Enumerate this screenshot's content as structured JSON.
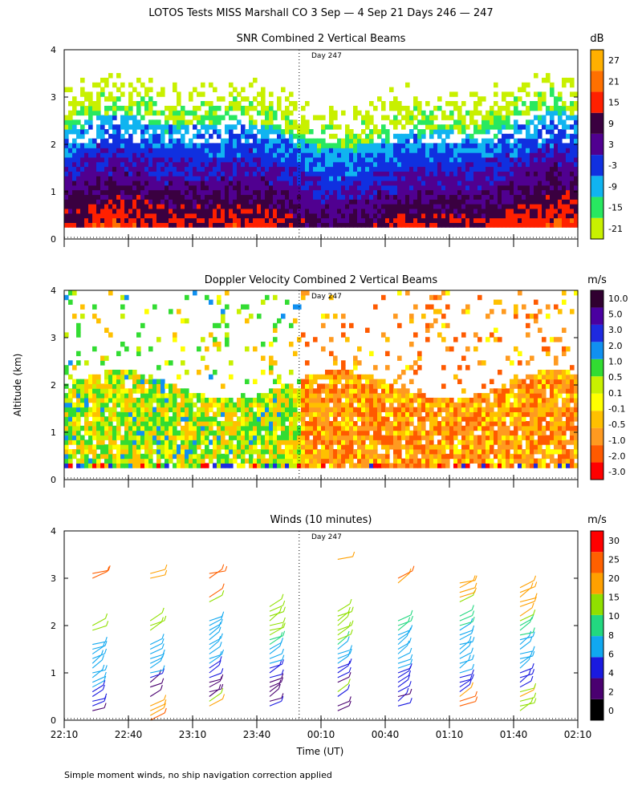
{
  "figure": {
    "title": "LOTOS Tests MISS Marshall CO   3 Sep —  4 Sep 21 Days 246 — 247",
    "footnote": "Simple moment winds, no ship navigation correction applied",
    "shared_ylabel": "Altitude (km)",
    "shared_xlabel": "Time (UT)",
    "x_ticks": [
      "22:10",
      "22:40",
      "23:10",
      "23:40",
      "00:10",
      "00:40",
      "01:10",
      "01:40",
      "02:10"
    ],
    "y_ticks": [
      "0",
      "1",
      "2",
      "3",
      "4"
    ],
    "day_marker": "Day 247"
  },
  "colors": {
    "snr": [
      "#c8f000",
      "#28e860",
      "#10b4f0",
      "#1030e0",
      "#500090",
      "#3a0040",
      "#ff2000",
      "#ff7000",
      "#ffb000"
    ],
    "vel": [
      "#ff0000",
      "#ff5a00",
      "#ff9a20",
      "#ffc000",
      "#ffff00",
      "#c8f000",
      "#32dc32",
      "#1090f0",
      "#1e2ae0",
      "#4a00a0",
      "#300030"
    ],
    "wind": [
      "#000000",
      "#4a0070",
      "#1a1ae0",
      "#10a8f0",
      "#22d880",
      "#90e000",
      "#ffa000",
      "#ff6000",
      "#ff0000"
    ]
  },
  "chart_data": [
    {
      "type": "heatmap",
      "title": "SNR Combined 2 Vertical Beams",
      "unit": "dB",
      "xlabel": "",
      "ylabel": "",
      "xlim_hours_since_2210": [
        0,
        4
      ],
      "ylim_km": [
        0,
        4
      ],
      "data_alt_range_km": [
        0.25,
        4.0
      ],
      "legend_levels": [
        "27",
        "21",
        "15",
        "9",
        "3",
        "-3",
        "-9",
        "-15",
        "-21"
      ],
      "alt_profile_km": [
        0.3,
        0.8,
        1.2,
        1.6,
        2.0,
        2.4,
        2.8,
        3.2,
        3.6
      ],
      "typical_snr_db": [
        10,
        4,
        -2,
        -8,
        -12,
        -17,
        -19,
        -20,
        -21
      ]
    },
    {
      "type": "heatmap",
      "title": "Doppler Velocity Combined 2 Vertical Beams",
      "unit": "m/s",
      "xlabel": "",
      "ylabel": "Altitude (km)",
      "xlim_hours_since_2210": [
        0,
        4
      ],
      "ylim_km": [
        0,
        4
      ],
      "data_alt_range_km": [
        0.25,
        4.0
      ],
      "legend_levels": [
        "10.0",
        "5.0",
        "3.0",
        "2.0",
        "1.0",
        "0.5",
        "0.1",
        "-0.1",
        "-0.5",
        "-1.0",
        "-2.0",
        "-3.0"
      ],
      "first_half_typical_ms": 0.3,
      "second_half_typical_ms": -0.7
    },
    {
      "type": "scatter",
      "title": "Winds (10 minutes)",
      "unit": "m/s",
      "xlabel": "Time (UT)",
      "ylabel": "",
      "xlim_hours_since_2210": [
        0,
        4
      ],
      "ylim_km": [
        0,
        4
      ],
      "legend_levels": [
        "30",
        "25",
        "20",
        "15",
        "10",
        "8",
        "6",
        "4",
        "2",
        "0"
      ],
      "profile_times_hours_since_2210": [
        0.22,
        0.67,
        1.13,
        1.6,
        2.13,
        2.6,
        3.08,
        3.55
      ],
      "profiles": [
        {
          "alts_km": [
            0.2,
            0.3,
            0.4,
            0.5,
            0.6,
            0.7,
            0.8,
            0.9,
            1.0,
            1.1,
            1.2,
            1.3,
            1.4,
            1.5,
            1.6,
            1.9,
            2.0,
            3.0,
            3.1
          ],
          "speeds_ms": [
            3,
            4,
            5,
            4,
            5,
            6,
            6,
            7,
            7,
            7,
            6,
            6,
            6,
            6,
            7,
            12,
            14,
            22,
            24
          ]
        },
        {
          "alts_km": [
            0.0,
            0.1,
            0.2,
            0.3,
            0.5,
            0.7,
            0.8,
            0.9,
            1.0,
            1.1,
            1.2,
            1.3,
            1.4,
            1.5,
            1.6,
            1.9,
            2.0,
            2.1,
            3.0,
            3.1
          ],
          "speeds_ms": [
            20,
            18,
            16,
            15,
            3,
            2,
            3,
            5,
            6,
            6,
            7,
            7,
            6,
            6,
            6,
            12,
            13,
            14,
            15,
            16
          ]
        },
        {
          "alts_km": [
            0.3,
            0.4,
            0.5,
            0.6,
            0.7,
            0.8,
            0.9,
            1.0,
            1.1,
            1.2,
            1.3,
            1.4,
            1.5,
            1.6,
            1.7,
            1.8,
            1.9,
            2.0,
            2.1,
            2.5,
            2.6,
            3.0,
            3.1
          ],
          "speeds_ms": [
            15,
            14,
            3,
            3,
            2,
            3,
            4,
            5,
            5,
            6,
            6,
            6,
            6,
            6,
            6,
            6,
            6,
            7,
            7,
            12,
            20,
            22,
            20
          ]
        },
        {
          "alts_km": [
            0.3,
            0.4,
            0.5,
            0.6,
            0.7,
            0.8,
            0.9,
            1.0,
            1.1,
            1.2,
            1.3,
            1.4,
            1.5,
            1.6,
            1.7,
            1.8,
            1.9,
            2.0,
            2.1,
            2.2,
            2.3,
            2.4
          ],
          "speeds_ms": [
            4,
            3,
            2,
            2,
            3,
            3,
            4,
            5,
            5,
            6,
            6,
            7,
            7,
            8,
            9,
            10,
            11,
            11,
            12,
            12,
            12,
            12
          ]
        },
        {
          "alts_km": [
            0.2,
            0.3,
            0.5,
            0.6,
            0.8,
            0.9,
            1.0,
            1.1,
            1.2,
            1.3,
            1.4,
            1.5,
            1.6,
            1.7,
            1.8,
            1.9,
            2.0,
            2.1,
            2.2,
            2.3,
            3.4
          ],
          "speeds_ms": [
            3,
            3,
            4,
            10,
            3,
            4,
            5,
            5,
            6,
            6,
            6,
            7,
            8,
            10,
            11,
            12,
            12,
            13,
            12,
            12,
            16
          ]
        },
        {
          "alts_km": [
            0.3,
            0.4,
            0.5,
            0.6,
            0.7,
            0.8,
            0.9,
            1.0,
            1.1,
            1.2,
            1.3,
            1.4,
            1.5,
            1.6,
            1.7,
            1.8,
            1.9,
            2.0,
            2.1,
            2.9,
            3.0
          ],
          "speeds_ms": [
            4,
            4,
            3,
            4,
            4,
            5,
            5,
            5,
            6,
            6,
            6,
            6,
            6,
            6,
            7,
            7,
            8,
            9,
            9,
            18,
            20
          ]
        },
        {
          "alts_km": [
            0.3,
            0.4,
            0.5,
            0.6,
            0.7,
            0.8,
            0.9,
            1.0,
            1.1,
            1.2,
            1.3,
            1.4,
            1.5,
            1.6,
            1.7,
            1.8,
            1.9,
            2.0,
            2.1,
            2.2,
            2.5,
            2.6,
            2.7,
            2.8,
            2.9
          ],
          "speeds_ms": [
            22,
            20,
            18,
            4,
            4,
            5,
            5,
            6,
            6,
            6,
            6,
            7,
            7,
            7,
            7,
            7,
            7,
            8,
            8,
            9,
            14,
            16,
            18,
            18,
            18
          ]
        },
        {
          "alts_km": [
            0.2,
            0.3,
            0.4,
            0.5,
            0.6,
            0.7,
            0.8,
            0.9,
            1.0,
            1.1,
            1.2,
            1.3,
            1.4,
            1.5,
            1.6,
            1.7,
            1.8,
            1.9,
            2.0,
            2.1,
            2.2,
            2.4,
            2.5,
            2.6,
            2.7,
            2.8
          ],
          "speeds_ms": [
            14,
            13,
            12,
            15,
            12,
            4,
            4,
            5,
            5,
            6,
            6,
            6,
            7,
            7,
            7,
            7,
            8,
            8,
            9,
            13,
            15,
            16,
            17,
            18,
            18,
            18
          ]
        }
      ]
    }
  ]
}
